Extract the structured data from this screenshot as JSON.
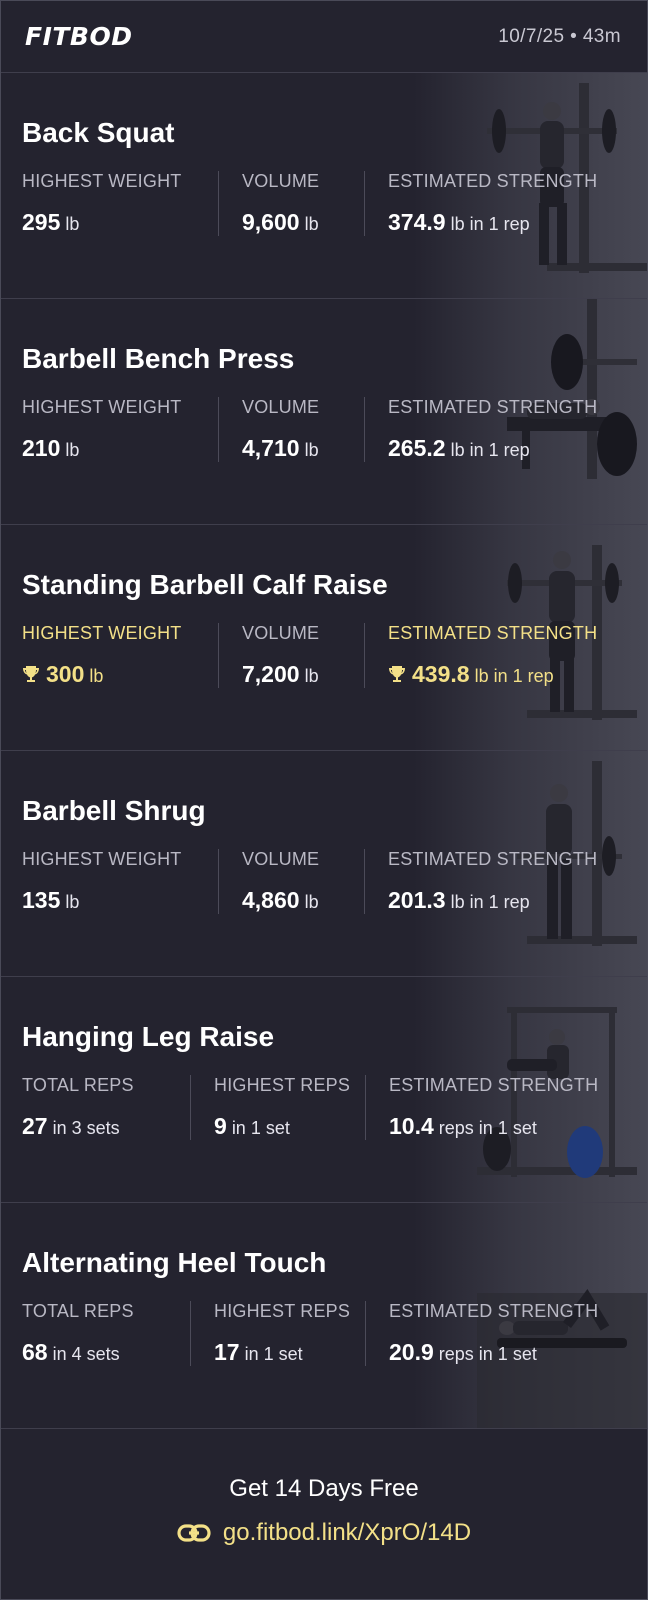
{
  "header": {
    "logo": "FITBOD",
    "meta": "10/7/25 • 43m"
  },
  "exercises": [
    {
      "name": "Back Squat",
      "stats": [
        {
          "label": "HIGHEST WEIGHT",
          "value": "295",
          "unit": "lb"
        },
        {
          "label": "VOLUME",
          "value": "9,600",
          "unit": "lb"
        },
        {
          "label": "ESTIMATED STRENGTH",
          "value": "374.9",
          "unit": "lb in 1 rep"
        }
      ]
    },
    {
      "name": "Barbell Bench Press",
      "stats": [
        {
          "label": "HIGHEST WEIGHT",
          "value": "210",
          "unit": "lb"
        },
        {
          "label": "VOLUME",
          "value": "4,710",
          "unit": "lb"
        },
        {
          "label": "ESTIMATED STRENGTH",
          "value": "265.2",
          "unit": "lb in 1 rep"
        }
      ]
    },
    {
      "name": "Standing Barbell Calf Raise",
      "stats": [
        {
          "label": "HIGHEST WEIGHT",
          "value": "300",
          "unit": "lb",
          "record": true
        },
        {
          "label": "VOLUME",
          "value": "7,200",
          "unit": "lb"
        },
        {
          "label": "ESTIMATED STRENGTH",
          "value": "439.8",
          "unit": "lb in 1 rep",
          "record": true
        }
      ]
    },
    {
      "name": "Barbell Shrug",
      "stats": [
        {
          "label": "HIGHEST WEIGHT",
          "value": "135",
          "unit": "lb"
        },
        {
          "label": "VOLUME",
          "value": "4,860",
          "unit": "lb"
        },
        {
          "label": "ESTIMATED STRENGTH",
          "value": "201.3",
          "unit": "lb in 1 rep"
        }
      ]
    },
    {
      "name": "Hanging Leg Raise",
      "stats": [
        {
          "label": "TOTAL REPS",
          "value": "27",
          "unit": "in 3 sets"
        },
        {
          "label": "HIGHEST REPS",
          "value": "9",
          "unit": "in 1 set"
        },
        {
          "label": "ESTIMATED STRENGTH",
          "value": "10.4",
          "unit": "reps in 1 set"
        }
      ]
    },
    {
      "name": "Alternating Heel Touch",
      "stats": [
        {
          "label": "TOTAL REPS",
          "value": "68",
          "unit": "in 4 sets"
        },
        {
          "label": "HIGHEST REPS",
          "value": "17",
          "unit": "in 1 set"
        },
        {
          "label": "ESTIMATED STRENGTH",
          "value": "20.9",
          "unit": "reps in 1 set"
        }
      ]
    }
  ],
  "footer": {
    "cta": "Get 14 Days Free",
    "link": "go.fitbod.link/XprO/14D"
  },
  "colors": {
    "background": "#24232f",
    "record": "#f3e088",
    "label": "#b9b8c4"
  },
  "icons": {
    "record": "trophy-icon",
    "link": "link-icon"
  }
}
